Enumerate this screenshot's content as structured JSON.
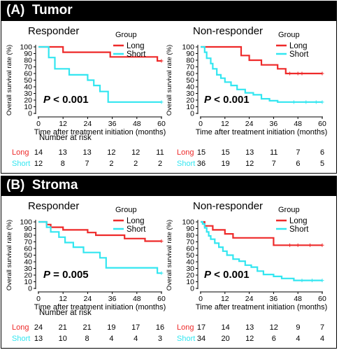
{
  "panels": [
    {
      "title": "(A)  Tumor",
      "charts": [
        {
          "title": "Responder",
          "pvalue_prefix": "P",
          "pvalue_rest": " < 0.001",
          "risk": {
            "long": [
              "14",
              "13",
              "13",
              "12",
              "12",
              "11"
            ],
            "short": [
              "12",
              "8",
              "7",
              "2",
              "2",
              "2"
            ]
          }
        },
        {
          "title": "Non-responder",
          "pvalue_prefix": "P",
          "pvalue_rest": " < 0.001",
          "risk": {
            "long": [
              "15",
              "15",
              "13",
              "11",
              "7",
              "6"
            ],
            "short": [
              "36",
              "19",
              "12",
              "7",
              "6",
              "5"
            ]
          }
        }
      ]
    },
    {
      "title": "(B)  Stroma",
      "charts": [
        {
          "title": "Responder",
          "pvalue_prefix": "P",
          "pvalue_rest": " = 0.005",
          "risk": {
            "long": [
              "24",
              "21",
              "21",
              "19",
              "17",
              "16"
            ],
            "short": [
              "13",
              "10",
              "8",
              "4",
              "4",
              "3"
            ]
          }
        },
        {
          "title": "Non-responder",
          "pvalue_prefix": "P",
          "pvalue_rest": " < 0.001",
          "risk": {
            "long": [
              "17",
              "14",
              "13",
              "12",
              "9",
              "7"
            ],
            "short": [
              "34",
              "20",
              "12",
              "6",
              "4",
              "4"
            ]
          }
        }
      ]
    }
  ],
  "common": {
    "ylabel": "Overall survival rate (%)",
    "xlabel": "Time after treatment initiation (months)",
    "legend_title": "Group",
    "legend_long": "Long",
    "legend_short": "Short",
    "risk_title": "Number at risk",
    "colors": {
      "long": "#ee2a2a",
      "short": "#33e6f0"
    }
  },
  "chart_data": [
    {
      "type": "line",
      "title": "Responder",
      "xlabel": "Time after treatment initiation (months)",
      "ylabel": "Overall survival rate (%)",
      "xlim": [
        0,
        60
      ],
      "ylim": [
        0,
        100
      ],
      "x_ticks": [
        0,
        12,
        24,
        36,
        48,
        60
      ],
      "y_ticks": [
        0,
        10,
        20,
        30,
        40,
        50,
        60,
        70,
        80,
        90,
        100
      ],
      "series": [
        {
          "name": "Long",
          "points": [
            [
              0,
              100
            ],
            [
              12,
              100
            ],
            [
              12,
              92
            ],
            [
              35,
              92
            ],
            [
              35,
              85
            ],
            [
              58,
              85
            ],
            [
              58,
              79
            ],
            [
              60,
              79
            ]
          ],
          "censor": [
            [
              60,
              79
            ]
          ]
        },
        {
          "name": "Short",
          "points": [
            [
              0,
              100
            ],
            [
              5,
              100
            ],
            [
              5,
              84
            ],
            [
              8,
              84
            ],
            [
              8,
              67
            ],
            [
              15,
              67
            ],
            [
              15,
              58
            ],
            [
              24,
              58
            ],
            [
              24,
              50
            ],
            [
              27,
              50
            ],
            [
              27,
              42
            ],
            [
              30,
              42
            ],
            [
              30,
              33
            ],
            [
              34,
              33
            ],
            [
              34,
              17
            ],
            [
              60,
              17
            ]
          ],
          "censor": [
            [
              60,
              17
            ]
          ]
        }
      ]
    },
    {
      "type": "line",
      "title": "Non-responder",
      "xlabel": "Time after treatment initiation (months)",
      "ylabel": "Overall survival rate (%)",
      "xlim": [
        0,
        60
      ],
      "ylim": [
        0,
        100
      ],
      "x_ticks": [
        0,
        12,
        24,
        36,
        48,
        60
      ],
      "y_ticks": [
        0,
        10,
        20,
        30,
        40,
        50,
        60,
        70,
        80,
        90,
        100
      ],
      "series": [
        {
          "name": "Long",
          "points": [
            [
              0,
              100
            ],
            [
              20,
              100
            ],
            [
              20,
              87
            ],
            [
              24,
              87
            ],
            [
              24,
              80
            ],
            [
              30,
              80
            ],
            [
              30,
              73
            ],
            [
              38,
              73
            ],
            [
              38,
              67
            ],
            [
              42,
              67
            ],
            [
              42,
              60
            ],
            [
              60,
              60
            ]
          ],
          "censor": [
            [
              44,
              60
            ],
            [
              48,
              60
            ],
            [
              50,
              60
            ],
            [
              60,
              60
            ]
          ]
        },
        {
          "name": "Short",
          "points": [
            [
              0,
              100
            ],
            [
              2,
              100
            ],
            [
              2,
              92
            ],
            [
              3,
              92
            ],
            [
              3,
              83
            ],
            [
              5,
              83
            ],
            [
              5,
              75
            ],
            [
              6,
              75
            ],
            [
              6,
              67
            ],
            [
              8,
              67
            ],
            [
              8,
              58
            ],
            [
              10,
              58
            ],
            [
              10,
              53
            ],
            [
              12,
              53
            ],
            [
              12,
              47
            ],
            [
              15,
              47
            ],
            [
              15,
              42
            ],
            [
              18,
              42
            ],
            [
              18,
              36
            ],
            [
              22,
              36
            ],
            [
              22,
              31
            ],
            [
              26,
              31
            ],
            [
              26,
              28
            ],
            [
              30,
              28
            ],
            [
              30,
              22
            ],
            [
              34,
              22
            ],
            [
              34,
              19
            ],
            [
              38,
              19
            ],
            [
              38,
              17
            ],
            [
              60,
              17
            ]
          ],
          "censor": [
            [
              46,
              17
            ],
            [
              52,
              17
            ],
            [
              57,
              17
            ],
            [
              60,
              17
            ]
          ]
        }
      ]
    },
    {
      "type": "line",
      "title": "Responder",
      "xlabel": "Time after treatment initiation (months)",
      "ylabel": "Overall survival rate (%)",
      "xlim": [
        0,
        60
      ],
      "ylim": [
        0,
        100
      ],
      "x_ticks": [
        0,
        12,
        24,
        36,
        48,
        60
      ],
      "y_ticks": [
        0,
        10,
        20,
        30,
        40,
        50,
        60,
        70,
        80,
        90,
        100
      ],
      "series": [
        {
          "name": "Long",
          "points": [
            [
              0,
              100
            ],
            [
              4,
              100
            ],
            [
              4,
              96
            ],
            [
              6,
              96
            ],
            [
              6,
              92
            ],
            [
              12,
              92
            ],
            [
              12,
              88
            ],
            [
              24,
              88
            ],
            [
              24,
              84
            ],
            [
              28,
              84
            ],
            [
              28,
              80
            ],
            [
              42,
              80
            ],
            [
              42,
              75
            ],
            [
              52,
              75
            ],
            [
              52,
              71
            ],
            [
              60,
              71
            ]
          ],
          "censor": [
            [
              60,
              71
            ]
          ]
        },
        {
          "name": "Short",
          "points": [
            [
              0,
              100
            ],
            [
              4,
              100
            ],
            [
              4,
              92
            ],
            [
              6,
              92
            ],
            [
              6,
              85
            ],
            [
              10,
              85
            ],
            [
              10,
              77
            ],
            [
              13,
              77
            ],
            [
              13,
              69
            ],
            [
              17,
              69
            ],
            [
              17,
              62
            ],
            [
              22,
              62
            ],
            [
              22,
              54
            ],
            [
              30,
              54
            ],
            [
              30,
              46
            ],
            [
              33,
              46
            ],
            [
              33,
              31
            ],
            [
              58,
              31
            ],
            [
              58,
              23
            ],
            [
              60,
              23
            ]
          ],
          "censor": [
            [
              60,
              23
            ]
          ]
        }
      ]
    },
    {
      "type": "line",
      "title": "Non-responder",
      "xlabel": "Time after treatment initiation (months)",
      "ylabel": "Overall survival rate (%)",
      "xlim": [
        0,
        60
      ],
      "ylim": [
        0,
        100
      ],
      "x_ticks": [
        0,
        12,
        24,
        36,
        48,
        60
      ],
      "y_ticks": [
        0,
        10,
        20,
        30,
        40,
        50,
        60,
        70,
        80,
        90,
        100
      ],
      "series": [
        {
          "name": "Long",
          "points": [
            [
              0,
              100
            ],
            [
              2,
              100
            ],
            [
              2,
              94
            ],
            [
              6,
              94
            ],
            [
              6,
              88
            ],
            [
              12,
              88
            ],
            [
              12,
              82
            ],
            [
              16,
              82
            ],
            [
              16,
              76
            ],
            [
              36,
              76
            ],
            [
              36,
              65
            ],
            [
              60,
              65
            ]
          ],
          "censor": [
            [
              44,
              65
            ],
            [
              48,
              65
            ],
            [
              54,
              65
            ],
            [
              60,
              65
            ]
          ]
        },
        {
          "name": "Short",
          "points": [
            [
              0,
              100
            ],
            [
              1,
              100
            ],
            [
              1,
              97
            ],
            [
              2,
              97
            ],
            [
              2,
              91
            ],
            [
              3,
              91
            ],
            [
              3,
              85
            ],
            [
              4,
              85
            ],
            [
              4,
              79
            ],
            [
              5,
              79
            ],
            [
              5,
              74
            ],
            [
              7,
              74
            ],
            [
              7,
              68
            ],
            [
              9,
              68
            ],
            [
              9,
              62
            ],
            [
              11,
              62
            ],
            [
              11,
              56
            ],
            [
              13,
              56
            ],
            [
              13,
              50
            ],
            [
              16,
              50
            ],
            [
              16,
              44
            ],
            [
              19,
              44
            ],
            [
              19,
              41
            ],
            [
              22,
              41
            ],
            [
              22,
              35
            ],
            [
              25,
              35
            ],
            [
              25,
              32
            ],
            [
              28,
              32
            ],
            [
              28,
              26
            ],
            [
              31,
              26
            ],
            [
              31,
              21
            ],
            [
              36,
              21
            ],
            [
              36,
              18
            ],
            [
              40,
              18
            ],
            [
              40,
              15
            ],
            [
              46,
              15
            ],
            [
              46,
              12
            ],
            [
              60,
              12
            ]
          ],
          "censor": [
            [
              50,
              12
            ],
            [
              55,
              12
            ],
            [
              60,
              12
            ]
          ]
        }
      ]
    }
  ]
}
